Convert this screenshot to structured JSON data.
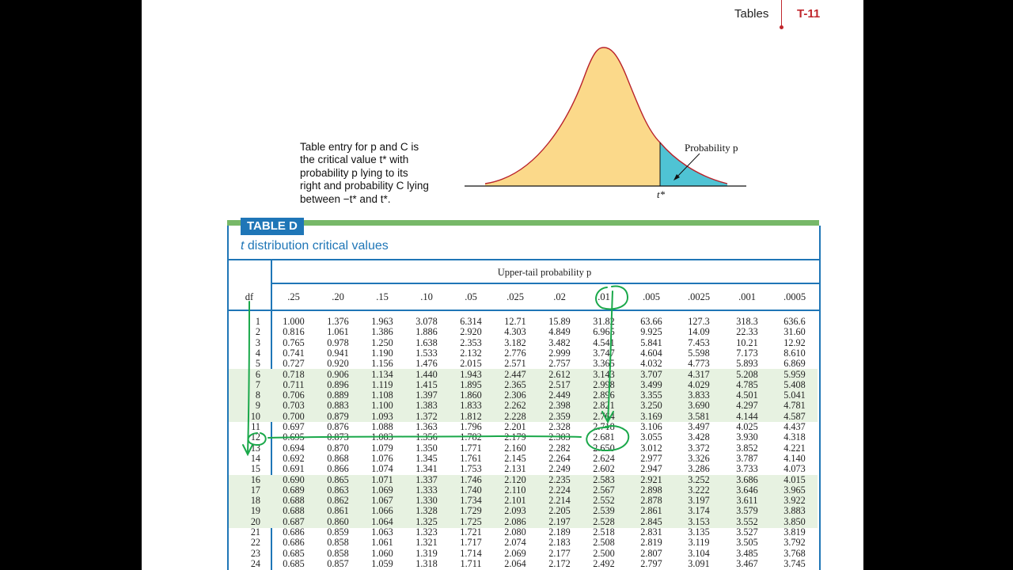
{
  "header": {
    "section": "Tables",
    "page": "T-11"
  },
  "caption": {
    "lines": [
      "Table entry for p and C is",
      "the critical value t* with",
      "probability p lying to its",
      "right and probability C lying",
      "between −t* and t*."
    ]
  },
  "figure": {
    "prob_label": "Probability p",
    "tstar_label": "t*"
  },
  "table": {
    "label": "TABLE D",
    "title_var": "t",
    "title_rest": " distribution critical values",
    "upper_label": "Upper-tail probability p",
    "df_label": "df",
    "columns": [
      ".25",
      ".20",
      ".15",
      ".10",
      ".05",
      ".025",
      ".02",
      ".01",
      ".005",
      ".0025",
      ".001",
      ".0005"
    ],
    "rows": [
      [
        "1",
        "1.000",
        "1.376",
        "1.963",
        "3.078",
        "6.314",
        "12.71",
        "15.89",
        "31.82",
        "63.66",
        "127.3",
        "318.3",
        "636.6"
      ],
      [
        "2",
        "0.816",
        "1.061",
        "1.386",
        "1.886",
        "2.920",
        "4.303",
        "4.849",
        "6.965",
        "9.925",
        "14.09",
        "22.33",
        "31.60"
      ],
      [
        "3",
        "0.765",
        "0.978",
        "1.250",
        "1.638",
        "2.353",
        "3.182",
        "3.482",
        "4.541",
        "5.841",
        "7.453",
        "10.21",
        "12.92"
      ],
      [
        "4",
        "0.741",
        "0.941",
        "1.190",
        "1.533",
        "2.132",
        "2.776",
        "2.999",
        "3.747",
        "4.604",
        "5.598",
        "7.173",
        "8.610"
      ],
      [
        "5",
        "0.727",
        "0.920",
        "1.156",
        "1.476",
        "2.015",
        "2.571",
        "2.757",
        "3.365",
        "4.032",
        "4.773",
        "5.893",
        "6.869"
      ],
      [
        "6",
        "0.718",
        "0.906",
        "1.134",
        "1.440",
        "1.943",
        "2.447",
        "2.612",
        "3.143",
        "3.707",
        "4.317",
        "5.208",
        "5.959"
      ],
      [
        "7",
        "0.711",
        "0.896",
        "1.119",
        "1.415",
        "1.895",
        "2.365",
        "2.517",
        "2.998",
        "3.499",
        "4.029",
        "4.785",
        "5.408"
      ],
      [
        "8",
        "0.706",
        "0.889",
        "1.108",
        "1.397",
        "1.860",
        "2.306",
        "2.449",
        "2.896",
        "3.355",
        "3.833",
        "4.501",
        "5.041"
      ],
      [
        "9",
        "0.703",
        "0.883",
        "1.100",
        "1.383",
        "1.833",
        "2.262",
        "2.398",
        "2.821",
        "3.250",
        "3.690",
        "4.297",
        "4.781"
      ],
      [
        "10",
        "0.700",
        "0.879",
        "1.093",
        "1.372",
        "1.812",
        "2.228",
        "2.359",
        "2.764",
        "3.169",
        "3.581",
        "4.144",
        "4.587"
      ],
      [
        "11",
        "0.697",
        "0.876",
        "1.088",
        "1.363",
        "1.796",
        "2.201",
        "2.328",
        "2.718",
        "3.106",
        "3.497",
        "4.025",
        "4.437"
      ],
      [
        "12",
        "0.695",
        "0.873",
        "1.083",
        "1.356",
        "1.782",
        "2.179",
        "2.303",
        "2.681",
        "3.055",
        "3.428",
        "3.930",
        "4.318"
      ],
      [
        "13",
        "0.694",
        "0.870",
        "1.079",
        "1.350",
        "1.771",
        "2.160",
        "2.282",
        "2.650",
        "3.012",
        "3.372",
        "3.852",
        "4.221"
      ],
      [
        "14",
        "0.692",
        "0.868",
        "1.076",
        "1.345",
        "1.761",
        "2.145",
        "2.264",
        "2.624",
        "2.977",
        "3.326",
        "3.787",
        "4.140"
      ],
      [
        "15",
        "0.691",
        "0.866",
        "1.074",
        "1.341",
        "1.753",
        "2.131",
        "2.249",
        "2.602",
        "2.947",
        "3.286",
        "3.733",
        "4.073"
      ],
      [
        "16",
        "0.690",
        "0.865",
        "1.071",
        "1.337",
        "1.746",
        "2.120",
        "2.235",
        "2.583",
        "2.921",
        "3.252",
        "3.686",
        "4.015"
      ],
      [
        "17",
        "0.689",
        "0.863",
        "1.069",
        "1.333",
        "1.740",
        "2.110",
        "2.224",
        "2.567",
        "2.898",
        "3.222",
        "3.646",
        "3.965"
      ],
      [
        "18",
        "0.688",
        "0.862",
        "1.067",
        "1.330",
        "1.734",
        "2.101",
        "2.214",
        "2.552",
        "2.878",
        "3.197",
        "3.611",
        "3.922"
      ],
      [
        "19",
        "0.688",
        "0.861",
        "1.066",
        "1.328",
        "1.729",
        "2.093",
        "2.205",
        "2.539",
        "2.861",
        "3.174",
        "3.579",
        "3.883"
      ],
      [
        "20",
        "0.687",
        "0.860",
        "1.064",
        "1.325",
        "1.725",
        "2.086",
        "2.197",
        "2.528",
        "2.845",
        "3.153",
        "3.552",
        "3.850"
      ],
      [
        "21",
        "0.686",
        "0.859",
        "1.063",
        "1.323",
        "1.721",
        "2.080",
        "2.189",
        "2.518",
        "2.831",
        "3.135",
        "3.527",
        "3.819"
      ],
      [
        "22",
        "0.686",
        "0.858",
        "1.061",
        "1.321",
        "1.717",
        "2.074",
        "2.183",
        "2.508",
        "2.819",
        "3.119",
        "3.505",
        "3.792"
      ],
      [
        "23",
        "0.685",
        "0.858",
        "1.060",
        "1.319",
        "1.714",
        "2.069",
        "2.177",
        "2.500",
        "2.807",
        "3.104",
        "3.485",
        "3.768"
      ],
      [
        "24",
        "0.685",
        "0.857",
        "1.059",
        "1.318",
        "1.711",
        "2.064",
        "2.172",
        "2.492",
        "2.797",
        "3.091",
        "3.467",
        "3.745"
      ]
    ]
  },
  "colors": {
    "accent_blue": "#1f76b7",
    "band_green": "#e7f2e1",
    "curve_fill": "#fbd98a",
    "tail_fill": "#4fc3d4",
    "ink_green": "#1aa84a",
    "header_red": "#c0272d"
  }
}
